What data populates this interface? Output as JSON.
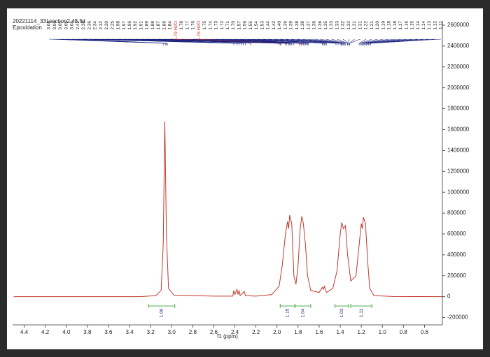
{
  "chart_data": {
    "type": "line",
    "title": "20221114_331section2.48.fid",
    "subtitle": "Epoxidation",
    "x_label": "f1 (ppm)",
    "color": "#c0392b",
    "x": [
      4.5,
      3.3,
      3.15,
      3.1,
      3.08,
      3.065,
      3.05,
      3.03,
      2.98,
      2.6,
      2.42,
      2.41,
      2.4,
      2.38,
      2.37,
      2.36,
      2.35,
      2.32,
      2.31,
      2.3,
      2.2,
      2.05,
      1.98,
      1.95,
      1.92,
      1.9,
      1.89,
      1.88,
      1.86,
      1.84,
      1.82,
      1.8,
      1.78,
      1.765,
      1.75,
      1.73,
      1.71,
      1.68,
      1.6,
      1.57,
      1.56,
      1.55,
      1.53,
      1.47,
      1.43,
      1.4,
      1.385,
      1.37,
      1.35,
      1.33,
      1.3,
      1.25,
      1.22,
      1.2,
      1.19,
      1.18,
      1.16,
      1.14,
      1.12,
      1.08,
      0.9,
      0.43
    ],
    "values": [
      0,
      0,
      10000,
      60000,
      500000,
      1680000,
      600000,
      80000,
      15000,
      5000,
      5000,
      60000,
      20000,
      70000,
      20000,
      60000,
      10000,
      40000,
      50000,
      10000,
      5000,
      20000,
      100000,
      300000,
      600000,
      720000,
      650000,
      780000,
      700000,
      200000,
      120000,
      300000,
      650000,
      770000,
      700000,
      500000,
      200000,
      60000,
      40000,
      90000,
      70000,
      100000,
      40000,
      80000,
      250000,
      600000,
      710000,
      650000,
      680000,
      400000,
      150000,
      200000,
      500000,
      700000,
      650000,
      760000,
      700000,
      350000,
      80000,
      10000,
      2000,
      0
    ],
    "xlim": [
      4.51,
      0.43
    ],
    "ylim": [
      -270000,
      2640000
    ],
    "xticks": [
      4.4,
      4.2,
      {
        "value": 4.0,
        "label": "4.0"
      },
      3.8,
      3.6,
      3.4,
      3.2,
      {
        "value": 3.0,
        "label": "3.0"
      },
      2.8,
      2.6,
      2.4,
      2.2,
      {
        "value": 2.0,
        "label": "2.0"
      },
      1.8,
      1.6,
      1.4,
      1.2,
      {
        "value": 1.0,
        "label": "1.0"
      },
      0.8,
      0.6
    ],
    "yticks": [
      2600000,
      2400000,
      2200000,
      2000000,
      1800000,
      1600000,
      1400000,
      1200000,
      1000000,
      800000,
      600000,
      400000,
      200000,
      0,
      -200000
    ],
    "peak_labels": [
      {
        "label": "3.08"
      },
      {
        "label": "3.06"
      },
      {
        "label": "3.05"
      },
      {
        "label": "3.05"
      },
      {
        "label": "3.04"
      },
      {
        "label": "2.41"
      },
      {
        "label": "2.38"
      },
      {
        "label": "2.36"
      },
      {
        "label": "2.34"
      },
      {
        "label": "2.32"
      },
      {
        "label": "2.30"
      },
      {
        "label": "2.25"
      },
      {
        "label": "1.98"
      },
      {
        "label": "1.97"
      },
      {
        "label": "1.96"
      },
      {
        "label": "1.92"
      },
      {
        "label": "1.91"
      },
      {
        "label": "1.89"
      },
      {
        "label": "1.88"
      },
      {
        "label": "1.87"
      },
      {
        "label": "1.86"
      },
      {
        "label": "1.84"
      },
      {
        "label": "1.79 H2O",
        "color": "#d9342b"
      },
      {
        "label": "1.78"
      },
      {
        "label": "1.77"
      },
      {
        "label": "1.76"
      },
      {
        "label": "1.76 H2O",
        "color": "#d9342b"
      },
      {
        "label": "1.75"
      },
      {
        "label": "1.74"
      },
      {
        "label": "1.73"
      },
      {
        "label": "1.72"
      },
      {
        "label": "1.71"
      },
      {
        "label": "1.70"
      },
      {
        "label": "1.57"
      },
      {
        "label": "1.56"
      },
      {
        "label": "1.55"
      },
      {
        "label": "1.54"
      },
      {
        "label": "1.53"
      },
      {
        "label": "1.44"
      },
      {
        "label": "1.42"
      },
      {
        "label": "1.40"
      },
      {
        "label": "1.39"
      },
      {
        "label": "1.39"
      },
      {
        "label": "1.38"
      },
      {
        "label": "1.38"
      },
      {
        "label": "1.37"
      },
      {
        "label": "1.36"
      },
      {
        "label": "1.36"
      },
      {
        "label": "1.35"
      },
      {
        "label": "1.33"
      },
      {
        "label": "1.33"
      },
      {
        "label": "1.32"
      },
      {
        "label": "1.32"
      },
      {
        "label": "1.31"
      },
      {
        "label": "1.31"
      },
      {
        "label": "1.22"
      },
      {
        "label": "1.21"
      },
      {
        "label": "1.20"
      },
      {
        "label": "1.19"
      },
      {
        "label": "1.18"
      },
      {
        "label": "1.18"
      },
      {
        "label": "1.17"
      },
      {
        "label": "1.16"
      },
      {
        "label": "1.15"
      },
      {
        "label": "1.14"
      },
      {
        "label": "1.14"
      },
      {
        "label": "1.13"
      },
      {
        "label": "1.12"
      },
      {
        "label": "1.11"
      }
    ],
    "integrals": [
      {
        "label": "1.00",
        "range": [
          3.22,
          2.97
        ]
      },
      {
        "label": "1.15",
        "range": [
          1.97,
          1.83
        ]
      },
      {
        "label": "1.04",
        "range": [
          1.83,
          1.68
        ]
      },
      {
        "label": "1.03",
        "range": [
          1.45,
          1.32
        ]
      },
      {
        "label": "1.11",
        "range": [
          1.3,
          1.1
        ]
      }
    ]
  }
}
